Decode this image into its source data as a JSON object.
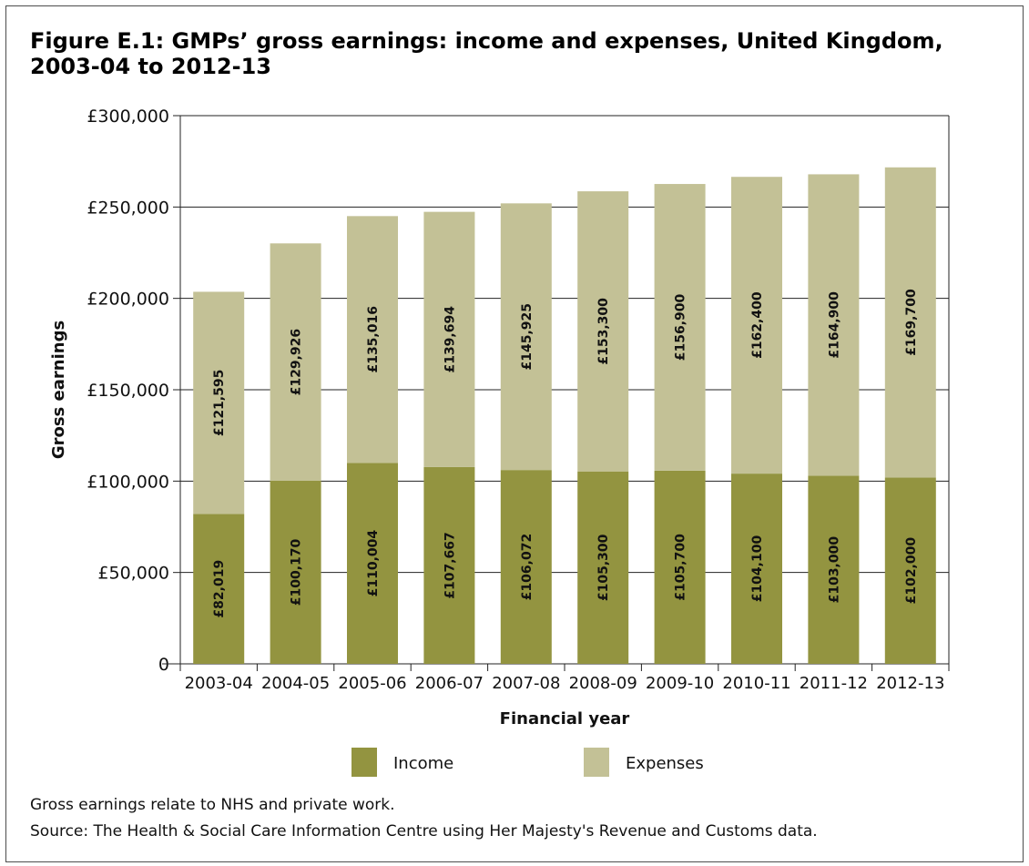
{
  "chart_data": {
    "type": "bar",
    "stacked": true,
    "title": "Figure E.1: GMPs’ gross earnings: income and expenses, United Kingdom, 2003-04 to 2012-13",
    "xlabel": "Financial year",
    "ylabel": "Gross earnings",
    "ylim": [
      0,
      300000
    ],
    "yticks": [
      {
        "value": 0,
        "label": "0"
      },
      {
        "value": 50000,
        "label": "£50,000"
      },
      {
        "value": 100000,
        "label": "£100,000"
      },
      {
        "value": 150000,
        "label": "£150,000"
      },
      {
        "value": 200000,
        "label": "£200,000"
      },
      {
        "value": 250000,
        "label": "£250,000"
      },
      {
        "value": 300000,
        "label": "£300,000"
      }
    ],
    "grid": true,
    "legend_position": "bottom",
    "categories": [
      "2003-04",
      "2004-05",
      "2005-06",
      "2006-07",
      "2007-08",
      "2008-09",
      "2009-10",
      "2010-11",
      "2011-12",
      "2012-13"
    ],
    "series": [
      {
        "name": "Income",
        "color": "#939440",
        "values": [
          82019,
          100170,
          110004,
          107667,
          106072,
          105300,
          105700,
          104100,
          103000,
          102000
        ],
        "labels": [
          "£82,019",
          "£100,170",
          "£110,004",
          "£107,667",
          "£106,072",
          "£105,300",
          "£105,700",
          "£104,100",
          "£103,000",
          "£102,000"
        ]
      },
      {
        "name": "Expenses",
        "color": "#c3c196",
        "values": [
          121595,
          129926,
          135016,
          139694,
          145925,
          153300,
          156900,
          162400,
          164900,
          169700
        ],
        "labels": [
          "£121,595",
          "£129,926",
          "£135,016",
          "£139,694",
          "£145,925",
          "£153,300",
          "£156,900",
          "£162,400",
          "£164,900",
          "£169,700"
        ]
      }
    ]
  },
  "notes": {
    "note1": "Gross earnings relate to NHS and private work.",
    "note2": "Source: The Health & Social Care Information Centre using Her Majesty's Revenue and Customs data."
  }
}
